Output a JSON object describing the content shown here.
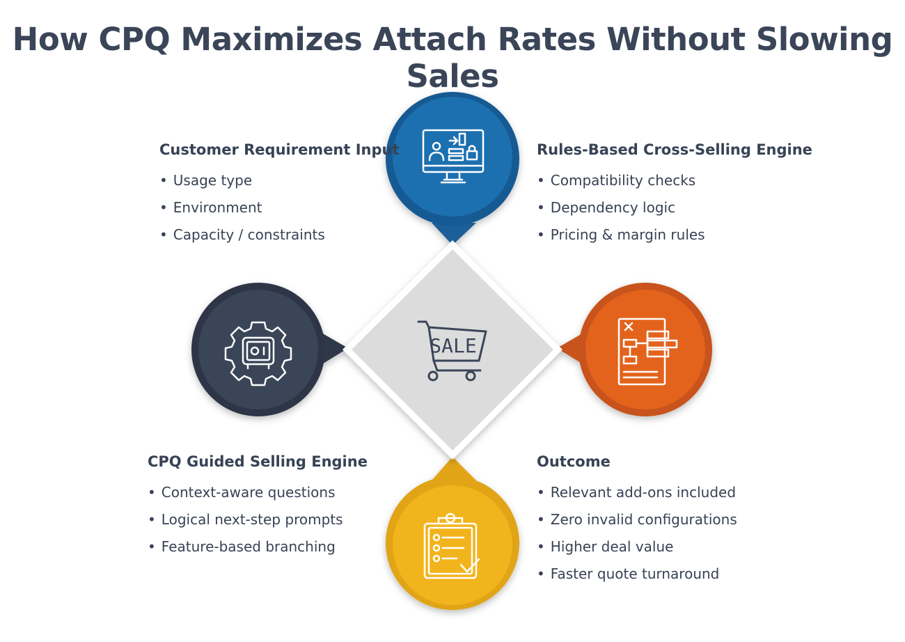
{
  "title": "How CPQ Maximizes Attach Rates Without Slowing Sales",
  "colors": {
    "title": "#3a4558",
    "text": "#384255",
    "blue": "#1e6fb0",
    "navy": "#3a4558",
    "orange": "#e3641f",
    "yellow": "#f2b41c",
    "diamond": "#dcdcdc"
  },
  "center": {
    "icon": "sale-cart-icon",
    "label": "SALE"
  },
  "panels": {
    "customer_input": {
      "heading": "Customer Requirement Input",
      "items": [
        "Usage type",
        "Environment",
        "Capacity / constraints"
      ]
    },
    "cross_selling": {
      "heading": "Rules-Based Cross-Selling Engine",
      "items": [
        "Compatibility checks",
        "Dependency logic",
        "Pricing & margin rules"
      ]
    },
    "guided_selling": {
      "heading": "CPQ Guided Selling Engine",
      "items": [
        "Context-aware questions",
        "Logical next-step prompts",
        "Feature-based branching"
      ]
    },
    "outcome": {
      "heading": "Outcome",
      "items": [
        "Relevant add-ons included",
        "Zero invalid configurations",
        "Higher deal value",
        "Faster quote turnaround"
      ]
    }
  },
  "icons": {
    "blue": "monitor-user-lock-icon",
    "navy": "gear-safe-icon",
    "orange": "flowchart-document-icon",
    "yellow": "clipboard-checklist-icon"
  }
}
